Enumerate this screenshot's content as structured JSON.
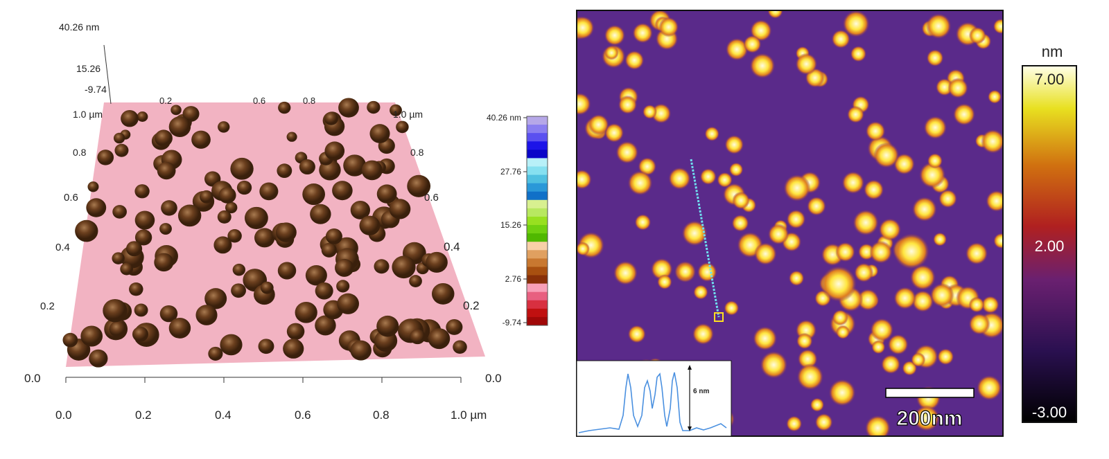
{
  "left_panel": {
    "z_axis": {
      "max": "40.26 nm",
      "mid": "15.26",
      "min": "-9.74"
    },
    "x_ticks": [
      "0.0",
      "0.2",
      "0.4",
      "0.6",
      "0.8",
      "1.0 µm"
    ],
    "left_y_ticks": [
      "0.0",
      "0.2",
      "0.4",
      "0.6",
      "0.8",
      "1.0 µm"
    ],
    "right_y_ticks": [
      "0.0",
      "0.2",
      "0.4",
      "0.6",
      "0.8",
      "1.0 µm"
    ],
    "top_ticks": [
      "0.2",
      "0.6",
      "0.8"
    ],
    "colorbar": {
      "labels": [
        "40.26 nm",
        "27.76",
        "15.26",
        "2.76",
        "-9.74"
      ],
      "colors": [
        "#b6a8e8",
        "#8a7ef0",
        "#5a50f0",
        "#1c14e8",
        "#0a06c8",
        "#b8f0f8",
        "#86e0f0",
        "#50c0e0",
        "#2a98d8",
        "#1070c8",
        "#d8f090",
        "#b8e860",
        "#98e020",
        "#70d010",
        "#50b800",
        "#f8d0a8",
        "#e0a060",
        "#c87830",
        "#a85010",
        "#883008",
        "#f8a0b8",
        "#e86080",
        "#d83040",
        "#c01010",
        "#a00808"
      ]
    },
    "surface_color": "#f2b3c2",
    "particle_color": "#6b3f1e"
  },
  "right_panel": {
    "scale_bar": "200nm",
    "profile_annotation": "6 nm",
    "line_color": "#6fe0f0",
    "colorbar": {
      "unit": "nm",
      "max": "7.00",
      "mid": "2.00",
      "min": "-3.00"
    }
  }
}
